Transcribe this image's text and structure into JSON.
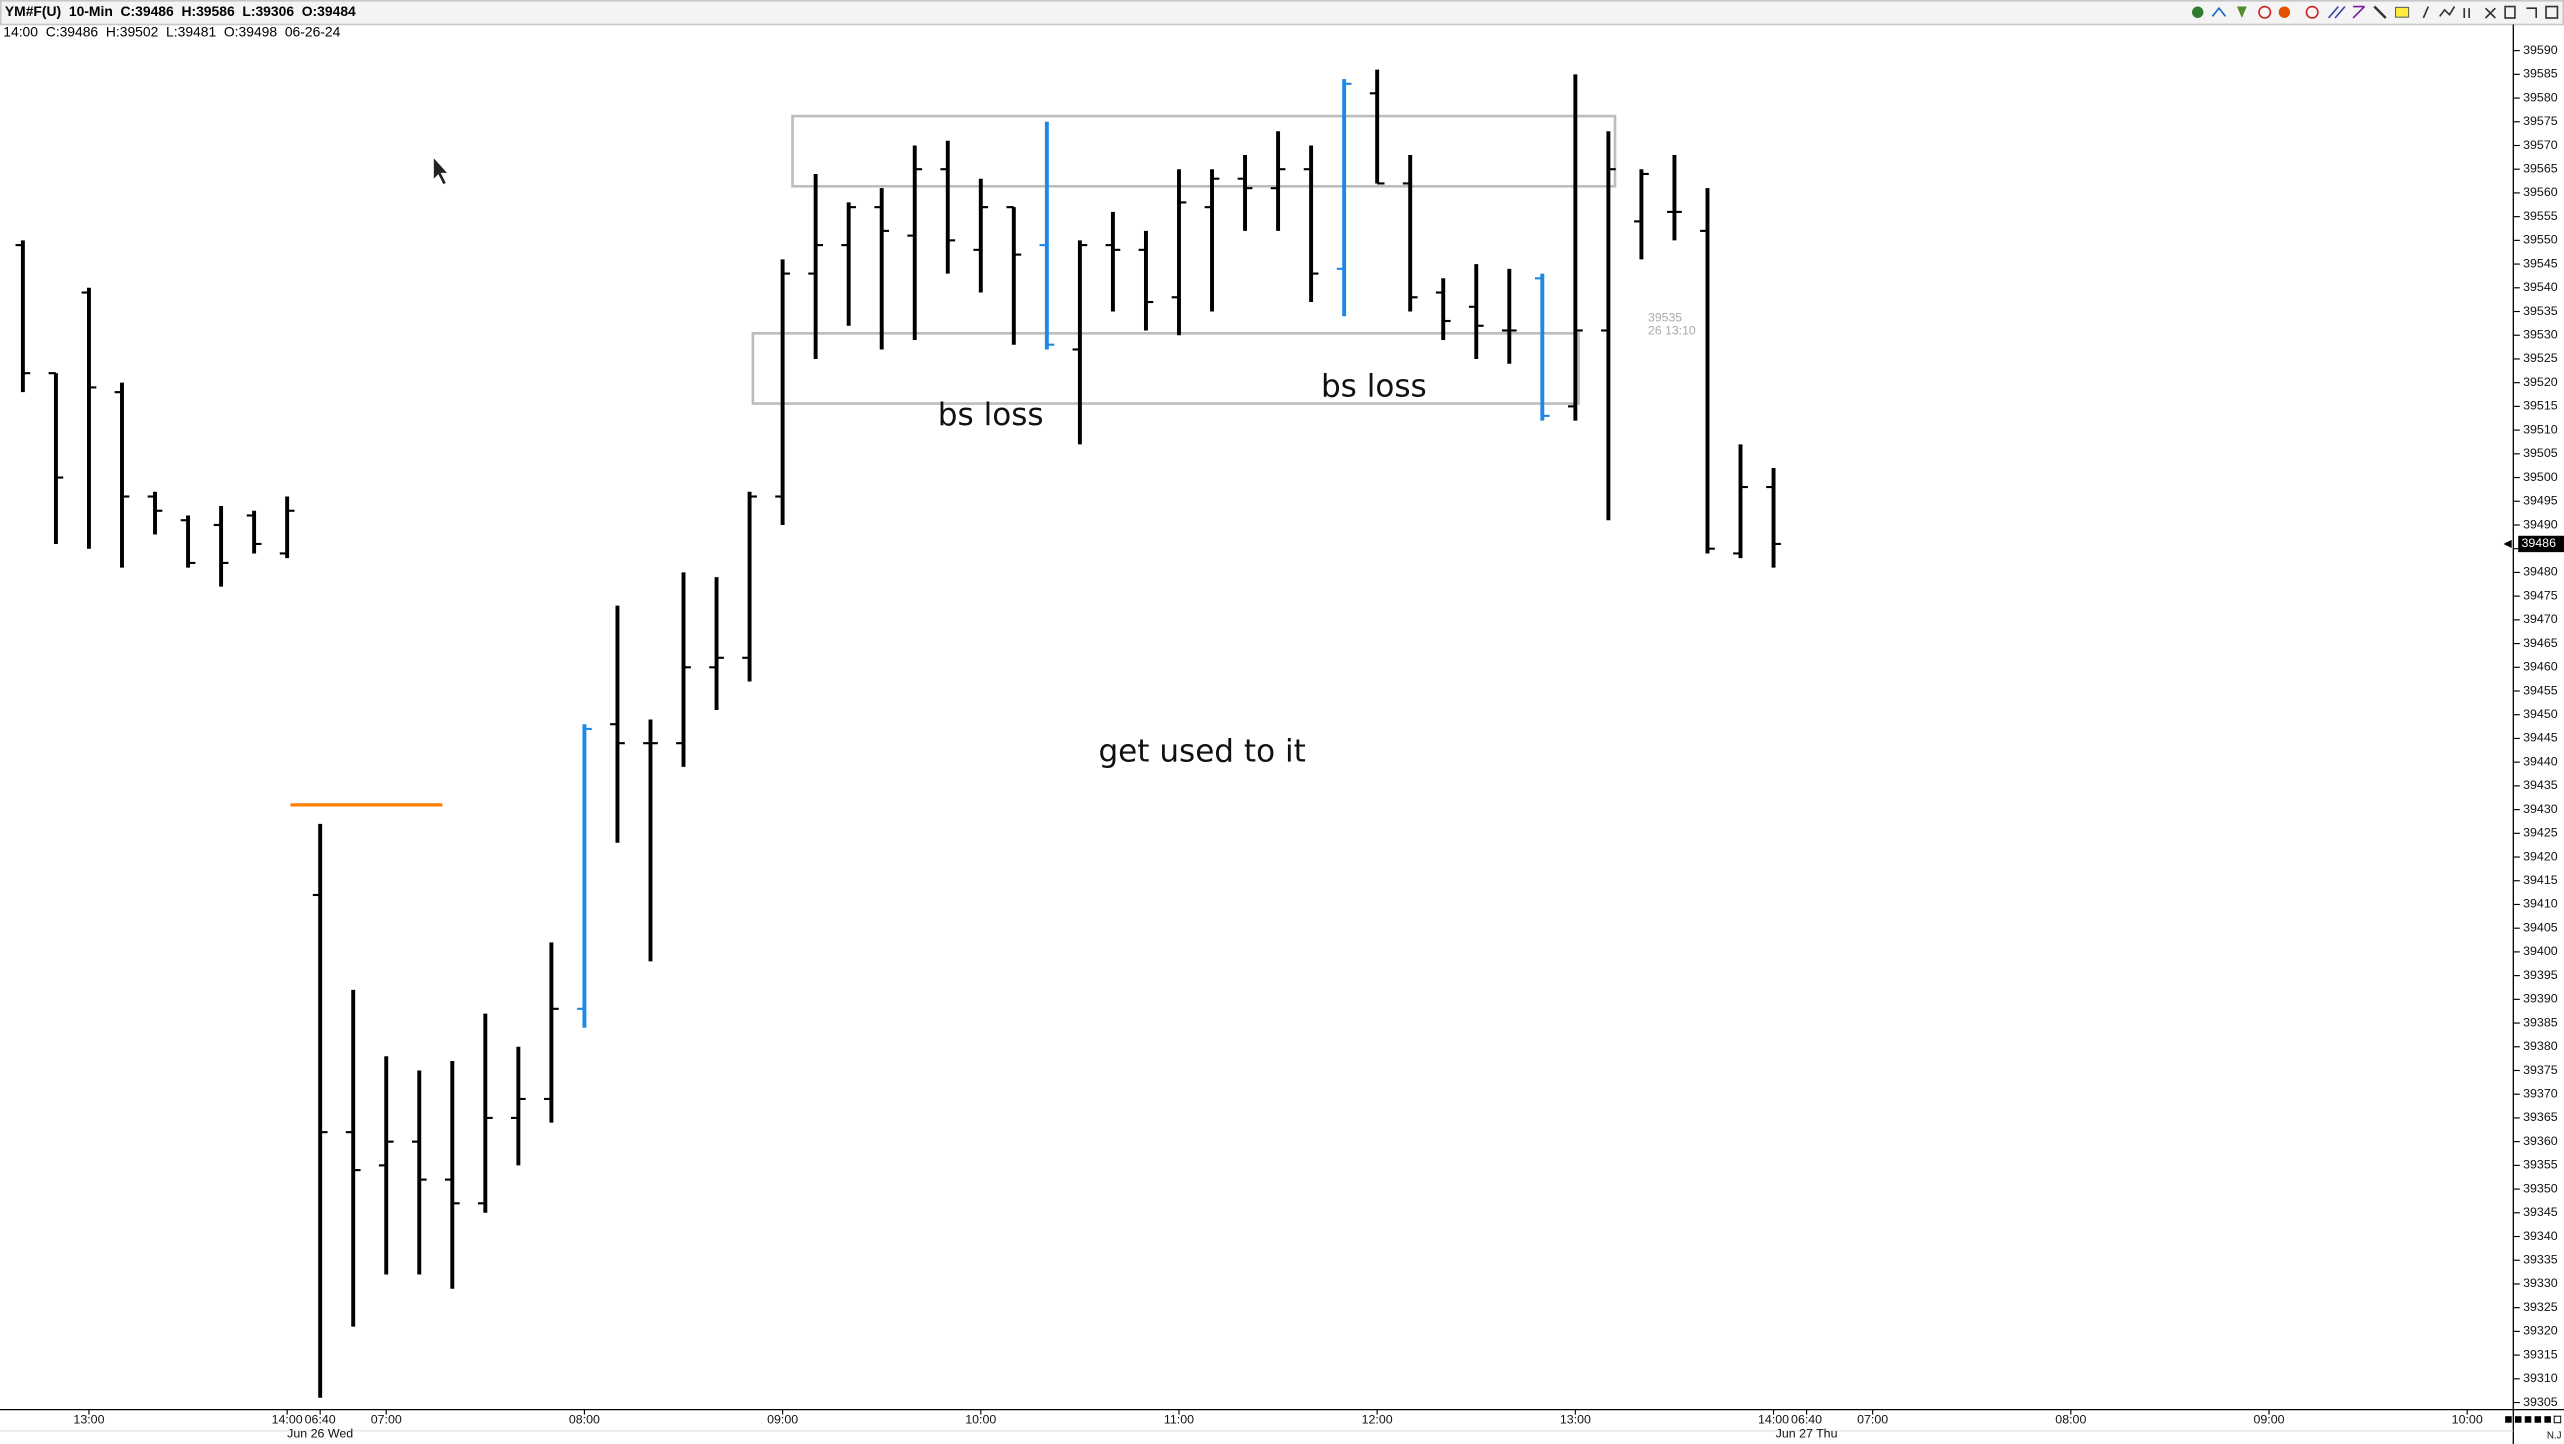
{
  "chart_data": {
    "type": "ohlc",
    "title": "YM#F(U)  10-Min  C:39486  H:39586  L:39306  O:39484",
    "subtitle": "14:00  C:39486  H:39502  L:39481  O:39498  06-26-24",
    "categories": [
      null,
      null,
      "13:00",
      null,
      null,
      null,
      null,
      null,
      "14:00",
      "06:40",
      null,
      "07:00",
      null,
      null,
      null,
      null,
      null,
      "08:00",
      null,
      null,
      null,
      null,
      null,
      "09:00",
      null,
      null,
      null,
      null,
      null,
      "10:00",
      null,
      null,
      null,
      null,
      null,
      "11:00",
      null,
      null,
      null,
      null,
      null,
      "12:00",
      null,
      null,
      null,
      null,
      null,
      "13:00",
      null,
      null,
      null,
      null,
      null,
      "14:00",
      "06:40",
      null,
      "07:00",
      null,
      null,
      null,
      null,
      null,
      "08:00",
      null,
      null,
      null,
      null,
      null,
      "09:00",
      null,
      null,
      null,
      null,
      null,
      "10:00"
    ],
    "dates": [
      null,
      null,
      null,
      null,
      null,
      null,
      null,
      null,
      null,
      "Jun 26 Wed",
      null,
      null,
      null,
      null,
      null,
      null,
      null,
      null,
      null,
      null,
      null,
      null,
      null,
      null,
      null,
      null,
      null,
      null,
      null,
      null,
      null,
      null,
      null,
      null,
      null,
      null,
      null,
      null,
      null,
      null,
      null,
      null,
      null,
      null,
      null,
      null,
      null,
      null,
      null,
      null,
      null,
      null,
      null,
      null,
      "Jun 27 Thu",
      null,
      null,
      null,
      null,
      null,
      null,
      null,
      null,
      null,
      null,
      null,
      null,
      null,
      null,
      null,
      null,
      null,
      null,
      null,
      null
    ],
    "open": [
      39549,
      39522,
      39539,
      39518,
      39496,
      39491,
      39490,
      39492,
      39484,
      39412,
      39362,
      39355,
      39360,
      39352,
      39347,
      39365,
      39369,
      39388,
      39448,
      39444,
      39444,
      39460,
      39462,
      39496,
      39543,
      39549,
      39557,
      39551,
      39565,
      39548,
      39557,
      39549,
      39527,
      39549,
      39548,
      39538,
      39557,
      39563,
      39561,
      39565,
      39544,
      39581,
      39562,
      39539,
      39536,
      39531,
      39542,
      39515,
      39531,
      39554,
      39556,
      39552,
      39484,
      39498,
      null,
      null,
      null,
      null,
      null,
      null,
      null,
      null,
      null,
      null,
      null,
      null,
      null,
      null,
      null,
      null,
      null,
      null,
      null,
      null,
      null
    ],
    "high": [
      39550,
      39522,
      39540,
      39520,
      39497,
      39492,
      39494,
      39493,
      39496,
      39427,
      39392,
      39378,
      39375,
      39377,
      39387,
      39380,
      39402,
      39448,
      39473,
      39449,
      39480,
      39479,
      39497,
      39546,
      39564,
      39558,
      39561,
      39570,
      39571,
      39563,
      39557,
      39575,
      39550,
      39556,
      39552,
      39565,
      39565,
      39568,
      39573,
      39570,
      39584,
      39586,
      39568,
      39542,
      39545,
      39544,
      39543,
      39585,
      39573,
      39565,
      39568,
      39561,
      39507,
      39502,
      null,
      null,
      null,
      null,
      null,
      null,
      null,
      null,
      null,
      null,
      null,
      null,
      null,
      null,
      null,
      null,
      null,
      null,
      null,
      null,
      null
    ],
    "low": [
      39518,
      39486,
      39485,
      39481,
      39488,
      39481,
      39477,
      39484,
      39483,
      39306,
      39321,
      39332,
      39332,
      39329,
      39345,
      39355,
      39364,
      39384,
      39423,
      39398,
      39439,
      39451,
      39457,
      39490,
      39525,
      39532,
      39527,
      39529,
      39543,
      39539,
      39528,
      39527,
      39507,
      39535,
      39531,
      39530,
      39535,
      39552,
      39552,
      39537,
      39534,
      39562,
      39535,
      39529,
      39525,
      39524,
      39512,
      39512,
      39491,
      39546,
      39550,
      39484,
      39483,
      39481,
      null,
      null,
      null,
      null,
      null,
      null,
      null,
      null,
      null,
      null,
      null,
      null,
      null,
      null,
      null,
      null,
      null,
      null,
      null,
      null,
      null
    ],
    "close": [
      39522,
      39500,
      39519,
      39496,
      39493,
      39482,
      39482,
      39486,
      39493,
      39362,
      39354,
      39360,
      39352,
      39347,
      39365,
      39369,
      39388,
      39447,
      39444,
      39444,
      39460,
      39462,
      39496,
      39543,
      39549,
      39557,
      39552,
      39565,
      39550,
      39557,
      39547,
      39528,
      39549,
      39548,
      39537,
      39558,
      39563,
      39561,
      39565,
      39543,
      39583,
      39562,
      39538,
      39533,
      39532,
      39531,
      39513,
      39531,
      39565,
      39564,
      39556,
      39485,
      39498,
      39486,
      null,
      null,
      null,
      null,
      null,
      null,
      null,
      null,
      null,
      null,
      null,
      null,
      null,
      null,
      null,
      null,
      null,
      null,
      null,
      null,
      null
    ],
    "colors": [
      "#000000",
      "#000000",
      "#000000",
      "#000000",
      "#000000",
      "#000000",
      "#000000",
      "#000000",
      "#000000",
      "#000000",
      "#000000",
      "#000000",
      "#000000",
      "#000000",
      "#000000",
      "#000000",
      "#000000",
      "#1e88e5",
      "#000000",
      "#000000",
      "#000000",
      "#000000",
      "#000000",
      "#000000",
      "#000000",
      "#000000",
      "#000000",
      "#000000",
      "#000000",
      "#000000",
      "#000000",
      "#1e88e5",
      "#000000",
      "#000000",
      "#000000",
      "#000000",
      "#000000",
      "#000000",
      "#000000",
      "#000000",
      "#1e88e5",
      "#000000",
      "#000000",
      "#000000",
      "#000000",
      "#000000",
      "#1e88e5",
      "#000000",
      "#000000",
      "#000000",
      "#000000",
      "#000000",
      "#000000",
      "#000000",
      null,
      null,
      null,
      null,
      null,
      null,
      null,
      null,
      null,
      null,
      null,
      null,
      null,
      null,
      null,
      null,
      null,
      null,
      null,
      null,
      null
    ],
    "ylim": [
      39303.5,
      39595.5
    ],
    "yticks": [
      39305,
      39310,
      39315,
      39320,
      39325,
      39330,
      39335,
      39340,
      39345,
      39350,
      39355,
      39360,
      39365,
      39370,
      39375,
      39380,
      39385,
      39390,
      39395,
      39400,
      39405,
      39410,
      39415,
      39420,
      39425,
      39430,
      39435,
      39440,
      39445,
      39450,
      39455,
      39460,
      39465,
      39470,
      39475,
      39480,
      39485,
      39490,
      39495,
      39500,
      39505,
      39510,
      39515,
      39520,
      39525,
      39530,
      39535,
      39540,
      39545,
      39550,
      39555,
      39560,
      39565,
      39570,
      39575,
      39580,
      39585,
      39590
    ],
    "last_price": 39486,
    "shapes": [
      {
        "x0": 23.3,
        "x1": 48.2,
        "y0": 39561.4,
        "y1": 39576.2,
        "color": "#bdbdbd"
      },
      {
        "x0": 22.1,
        "x1": 47.1,
        "y0": 39515.6,
        "y1": 39530.4,
        "color": "#bdbdbd"
      }
    ],
    "lines": [
      {
        "x0": 8.1,
        "x1": 12.7,
        "y": 39431,
        "color": "#ff7f00"
      }
    ],
    "annotations": [
      {
        "text": "bs loss",
        "x": 29.3,
        "y": 39513
      },
      {
        "text": "bs loss",
        "x": 40.9,
        "y": 39519
      },
      {
        "text": "get used to it",
        "x": 35.7,
        "y": 39442
      }
    ],
    "crosshair_labels": [
      {
        "text": "39535",
        "x": 49.2,
        "y": 39533.6
      },
      {
        "text": "26 13:10",
        "x": 49.2,
        "y": 39530.8
      }
    ],
    "corner_label": "N.J"
  }
}
